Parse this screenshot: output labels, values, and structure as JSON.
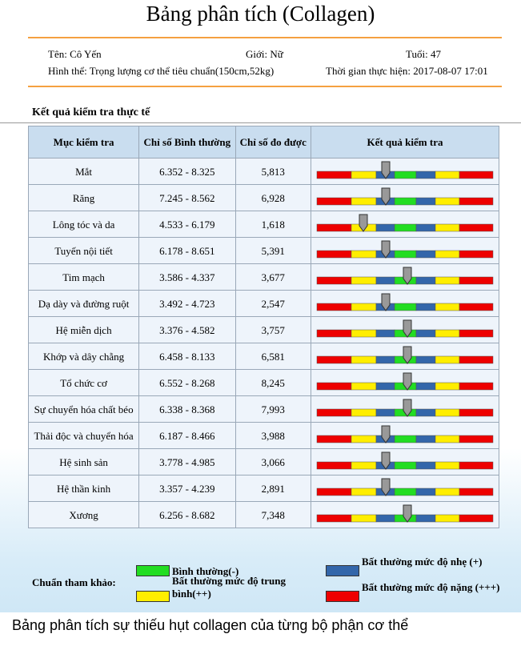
{
  "header": {
    "title": "Bảng phân tích (Collagen)"
  },
  "info": {
    "name": "Tên: Cô Yến",
    "gender": "Giới: Nữ",
    "age": "Tuổi: 47",
    "body": "Hình thể: Trọng lượng cơ thể tiêu chuẩn(150cm,52kg)",
    "time": "Thời gian thực hiện: 2017-08-07 17:01"
  },
  "section": "Kết quả kiểm tra thực tế",
  "table": {
    "columns": [
      "Mục kiểm tra",
      "Chỉ số Bình thường",
      "Chỉ số đo được",
      "Kết quả kiểm tra"
    ],
    "rows": [
      [
        "Mắt",
        "6.352 - 8.325",
        "5,813"
      ],
      [
        "Răng",
        "7.245 - 8.562",
        "6,928"
      ],
      [
        "Lông tóc và da",
        "4.533 - 6.179",
        "1,618"
      ],
      [
        "Tuyến nội tiết",
        "6.178 - 8.651",
        "5,391"
      ],
      [
        "Tim mạch",
        "3.586 - 4.337",
        "3,677"
      ],
      [
        "Dạ dày và đường ruột",
        "3.492 - 4.723",
        "2,547"
      ],
      [
        "Hệ miễn dịch",
        "3.376 - 4.582",
        "3,757"
      ],
      [
        "Khớp và dây chằng",
        "6.458 - 8.133",
        "6,581"
      ],
      [
        "Tổ chức cơ",
        "6.552 - 8.268",
        "8,245"
      ],
      [
        "Sự chuyển hóa chất béo",
        "6.338 - 8.368",
        "7,993"
      ],
      [
        "Thải độc và chuyển hóa",
        "6.187 - 8.466",
        "3,988"
      ],
      [
        "Hệ sinh sản",
        "3.778 - 4.985",
        "3,066"
      ],
      [
        "Hệ thần kinh",
        "3.357 - 4.239",
        "2,891"
      ],
      [
        "Xương",
        "6.256 - 8.682",
        "7,348"
      ]
    ]
  },
  "legend": {
    "label": "Chuẩn tham khảo:",
    "items": [
      {
        "color": "#22dd22",
        "text": "Bình thường(-)"
      },
      {
        "color": "#3366aa",
        "text": "Bất thường mức độ nhẹ (+)"
      },
      {
        "color": "#ffee00",
        "text": "Bất thường mức độ trung bình(++)"
      },
      {
        "color": "#ee0000",
        "text": "Bất thường mức độ nặng (+++)"
      }
    ]
  },
  "caption": "Bảng phân tích sự thiếu hụt collagen của từng bộ phận cơ thể"
}
